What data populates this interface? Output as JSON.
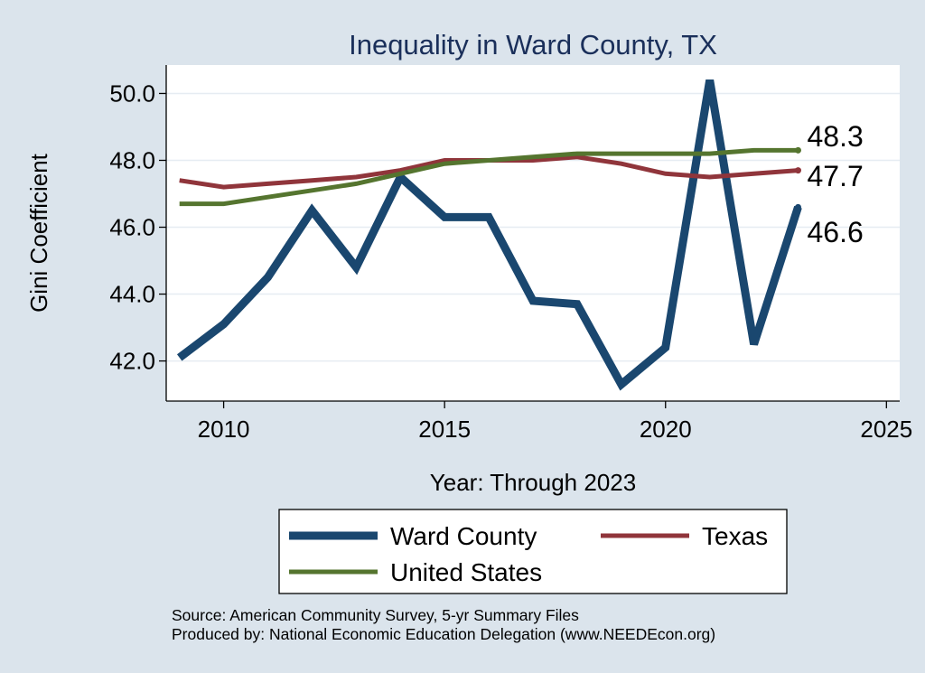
{
  "chart_data": {
    "type": "line",
    "title": "Inequality in Ward County, TX",
    "xlabel": "Year: Through 2023",
    "ylabel": "Gini Coefficient",
    "xlim": [
      2008.7,
      2025.3
    ],
    "ylim": [
      40.8,
      50.85
    ],
    "xticks": [
      2010,
      2015,
      2020,
      2025
    ],
    "yticks": [
      42.0,
      44.0,
      46.0,
      48.0,
      50.0
    ],
    "ytick_labels": [
      "42.0",
      "44.0",
      "46.0",
      "48.0",
      "50.0"
    ],
    "grid": true,
    "legend_position": "bottom",
    "x": [
      2009,
      2010,
      2011,
      2012,
      2013,
      2014,
      2015,
      2016,
      2017,
      2018,
      2019,
      2020,
      2021,
      2022,
      2023
    ],
    "series": [
      {
        "name": "Ward County",
        "color": "#1a476f",
        "values": [
          42.1,
          43.1,
          44.5,
          46.5,
          44.8,
          47.5,
          46.3,
          46.3,
          43.8,
          43.7,
          41.3,
          42.4,
          50.4,
          42.5,
          46.6
        ],
        "end_label": "46.6"
      },
      {
        "name": "Texas",
        "color": "#90353b",
        "values": [
          47.4,
          47.2,
          47.3,
          47.4,
          47.5,
          47.7,
          48.0,
          48.0,
          48.0,
          48.1,
          47.9,
          47.6,
          47.5,
          47.6,
          47.7
        ],
        "end_label": "47.7"
      },
      {
        "name": "United States",
        "color": "#55752f",
        "values": [
          46.7,
          46.7,
          46.9,
          47.1,
          47.3,
          47.6,
          47.9,
          48.0,
          48.1,
          48.2,
          48.2,
          48.2,
          48.2,
          48.3,
          48.3
        ],
        "end_label": "48.3"
      }
    ]
  },
  "source_lines": [
    "Source: American Community Survey, 5-yr Summary Files",
    "Produced by: National Economic Education Delegation (www.NEEDEcon.org)"
  ]
}
